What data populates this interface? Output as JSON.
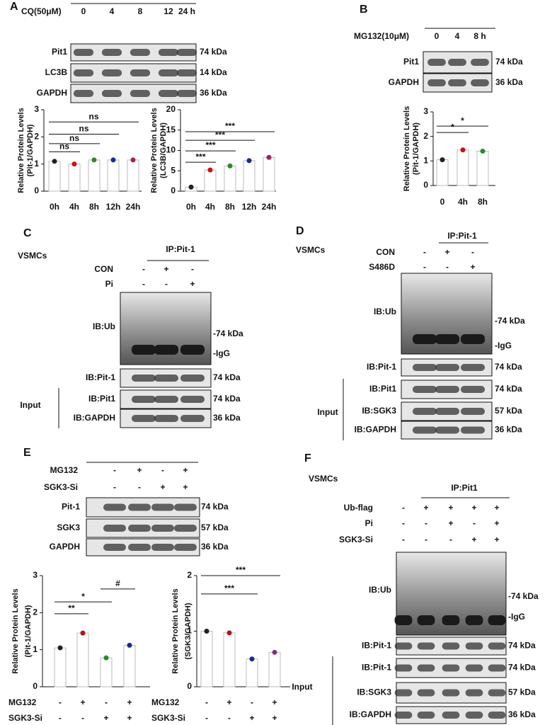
{
  "blots": {
    "A": {
      "label": "A",
      "conditions": [
        {
          "name": "CQ(50μM)",
          "values": [
            "0",
            "4",
            "8",
            "12",
            "24 h"
          ]
        }
      ],
      "rows": [
        {
          "label": "Pit1",
          "markers": [
            "74 kDa"
          ]
        },
        {
          "label": "LC3B",
          "markers": [
            "14 kDa"
          ]
        },
        {
          "label": "GAPDH",
          "markers": [
            "36 kDa"
          ]
        }
      ]
    },
    "B": {
      "label": "B",
      "conditions": [
        {
          "name": "MG132(10μM)",
          "values": [
            "0",
            "4",
            "8 h"
          ]
        }
      ],
      "rows": [
        {
          "label": "Pit1",
          "markers": [
            "74 kDa"
          ]
        },
        {
          "label": "GAPDH",
          "markers": [
            "36 kDa"
          ]
        }
      ]
    },
    "C": {
      "label": "C",
      "cell": "VSMCs",
      "ip": "IP:Pit-1",
      "conditions": [
        {
          "name": "CON",
          "values": [
            "-",
            "+",
            "-"
          ]
        },
        {
          "name": "Pi",
          "values": [
            "-",
            "-",
            "+"
          ]
        }
      ],
      "rows": [
        {
          "label": "IB:Ub",
          "markers": [
            "-74 kDa",
            "-IgG"
          ]
        },
        {
          "label": "IB:Pit-1",
          "markers": [
            "74 kDa"
          ]
        },
        {
          "label": "IB:Pit1",
          "markers": [
            "74 kDa"
          ]
        },
        {
          "label": "IB:GAPDH",
          "markers": [
            "36 kDa"
          ]
        }
      ],
      "input": "Input"
    },
    "D": {
      "label": "D",
      "cell": "VSMCs",
      "ip": "IP:Pit-1",
      "conditions": [
        {
          "name": "CON",
          "values": [
            "-",
            "+",
            "-"
          ]
        },
        {
          "name": "S486D",
          "values": [
            "-",
            "-",
            "+"
          ]
        }
      ],
      "rows": [
        {
          "label": "IB:Ub",
          "markers": [
            "-74 kDa",
            "-IgG"
          ]
        },
        {
          "label": "IB:Pit-1",
          "markers": [
            "74 kDa"
          ]
        },
        {
          "label": "IB:Pit1",
          "markers": [
            "74 kDa"
          ]
        },
        {
          "label": "IB:SGK3",
          "markers": [
            "57 kDa"
          ]
        },
        {
          "label": "IB:GAPDH",
          "markers": [
            "36 kDa"
          ]
        }
      ],
      "input": "Input"
    },
    "E": {
      "label": "E",
      "conditions": [
        {
          "name": "MG132",
          "values": [
            "-",
            "+",
            "-",
            "+"
          ]
        },
        {
          "name": "SGK3-Si",
          "values": [
            "-",
            "-",
            "+",
            "+"
          ]
        }
      ],
      "rows": [
        {
          "label": "Pit-1",
          "markers": [
            "74 kDa"
          ]
        },
        {
          "label": "SGK3",
          "markers": [
            "57 kDa"
          ]
        },
        {
          "label": "GAPDH",
          "markers": [
            "36 kDa"
          ]
        }
      ]
    },
    "F": {
      "label": "F",
      "cell": "VSMCs",
      "ip": "IP:Pit1",
      "conditions": [
        {
          "name": "Ub-flag",
          "values": [
            "-",
            "+",
            "+",
            "+",
            "+"
          ]
        },
        {
          "name": "Pi",
          "values": [
            "-",
            "-",
            "+",
            "-",
            "+"
          ]
        },
        {
          "name": "SGK3-Si",
          "values": [
            "-",
            "-",
            "-",
            "+",
            "+"
          ]
        }
      ],
      "rows": [
        {
          "label": "IB:Ub",
          "markers": [
            "-74 kDa",
            "-IgG"
          ]
        },
        {
          "label": "IB:Pit-1",
          "markers": [
            "74 kDa"
          ]
        },
        {
          "label": "IB:Pit-1",
          "markers": [
            "74 kDa"
          ]
        },
        {
          "label": "IB:SGK3",
          "markers": [
            "57 kDa"
          ]
        },
        {
          "label": "IB:GAPDH",
          "markers": [
            "36 kDa"
          ]
        }
      ],
      "input": "Input"
    }
  },
  "chart_data": [
    {
      "type": "bar",
      "ylabel": [
        "Relative Protein Levels",
        "(Pit-1/GAPDH)"
      ],
      "categories": [
        "0h",
        "4h",
        "8h",
        "12h",
        "24h"
      ],
      "values": [
        1.1,
        1.0,
        1.15,
        1.15,
        1.15
      ],
      "colors": [
        "#222222",
        "#cc1111",
        "#2a8a2a",
        "#1a2a8a",
        "#a0205a"
      ],
      "ylim": [
        0,
        3
      ],
      "yticks": [
        0,
        1,
        2,
        3
      ],
      "annotations": [
        "ns",
        "ns",
        "ns",
        "ns"
      ]
    },
    {
      "type": "bar",
      "ylabel": [
        "Relative Protein Levels",
        "(LC3B/GAPDH)"
      ],
      "categories": [
        "0h",
        "4h",
        "8h",
        "12h",
        "24h"
      ],
      "values": [
        1,
        5.2,
        6.2,
        7.5,
        8.3
      ],
      "colors": [
        "#222222",
        "#cc1111",
        "#2a8a2a",
        "#1a2a8a",
        "#a0205a"
      ],
      "ylim": [
        0,
        20
      ],
      "yticks": [
        0,
        5,
        10,
        15,
        20
      ],
      "annotations": [
        "***",
        "***",
        "***",
        "***"
      ]
    },
    {
      "type": "bar",
      "ylabel": [
        "Relative Protein Levels",
        "(Pit-1/GAPDH)"
      ],
      "categories": [
        "0",
        "4h",
        "8h"
      ],
      "values": [
        1.05,
        1.45,
        1.4
      ],
      "colors": [
        "#222222",
        "#cc1111",
        "#2a8a2a"
      ],
      "ylim": [
        0,
        3
      ],
      "yticks": [
        0,
        1,
        2,
        3
      ],
      "annotations": [
        "*",
        "*"
      ]
    },
    {
      "type": "bar",
      "ylabel": [
        "Relative Protein Levels",
        "(Pit-1/GAPDH)"
      ],
      "conditions": [
        {
          "name": "MG132",
          "values": [
            "-",
            "+",
            "-",
            "+"
          ]
        },
        {
          "name": "SGK3-Si",
          "values": [
            "-",
            "-",
            "+",
            "+"
          ]
        }
      ],
      "values": [
        1.05,
        1.45,
        0.78,
        1.12
      ],
      "colors": [
        "#222222",
        "#b01515",
        "#2a8a2a",
        "#1a2a8a"
      ],
      "ylim": [
        0,
        3
      ],
      "yticks": [
        0,
        1,
        2,
        3
      ],
      "annotations": [
        "**",
        "*",
        "#"
      ]
    },
    {
      "type": "bar",
      "ylabel": [
        "Relative Protein Levels",
        "(SGK3/GAPDH)"
      ],
      "conditions": [
        {
          "name": "MG132",
          "values": [
            "-",
            "+",
            "-",
            "+"
          ]
        },
        {
          "name": "SGK3-Si",
          "values": [
            "-",
            "-",
            "+",
            "+"
          ]
        }
      ],
      "values": [
        1.0,
        0.97,
        0.5,
        0.62
      ],
      "colors": [
        "#222222",
        "#b01515",
        "#1a2a8a",
        "#8a2a8a"
      ],
      "ylim": [
        0,
        2
      ],
      "yticks": [
        0,
        1,
        2
      ],
      "annotations": [
        "***",
        "***"
      ]
    }
  ]
}
